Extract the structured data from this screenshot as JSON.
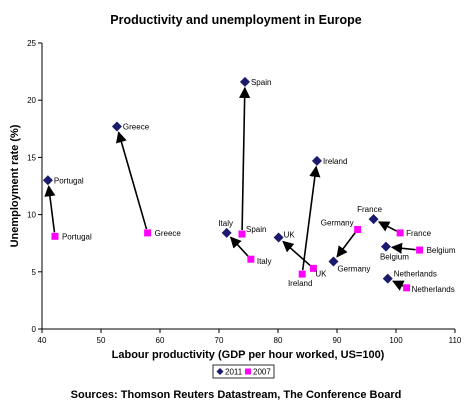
{
  "chart_data": {
    "type": "scatter",
    "title": "Productivity and unemployment in Europe",
    "xlabel": "Labour productivity (GDP per hour worked,  US=100)",
    "ylabel": "Unemployment rate (%)",
    "xlim": [
      40,
      110
    ],
    "ylim": [
      0,
      25
    ],
    "xticks": [
      40,
      50,
      60,
      70,
      80,
      90,
      100,
      110
    ],
    "yticks": [
      0,
      5,
      10,
      15,
      20,
      25
    ],
    "grid": false,
    "legend_position": "bottom",
    "source": "Sources: Thomson Reuters Datastream, The Conference Board",
    "series": [
      {
        "name": "2011",
        "marker": "diamond",
        "color": "#1a1a6e",
        "points": [
          {
            "label": "Portugal",
            "x": 41,
            "y": 13
          },
          {
            "label": "Greece",
            "x": 52.7,
            "y": 17.7
          },
          {
            "label": "Spain",
            "x": 74.4,
            "y": 21.6
          },
          {
            "label": "Italy",
            "x": 71.3,
            "y": 8.4
          },
          {
            "label": "UK",
            "x": 80.1,
            "y": 8.0
          },
          {
            "label": "Ireland",
            "x": 86.6,
            "y": 14.7
          },
          {
            "label": "Germany",
            "x": 89.4,
            "y": 5.9
          },
          {
            "label": "France",
            "x": 96.2,
            "y": 9.6
          },
          {
            "label": "Belgium",
            "x": 98.3,
            "y": 7.2
          },
          {
            "label": "Netherlands",
            "x": 98.6,
            "y": 4.4
          }
        ]
      },
      {
        "name": "2007",
        "marker": "square",
        "color": "#ff00ff",
        "points": [
          {
            "label": "Portugal",
            "x": 42.2,
            "y": 8.1
          },
          {
            "label": "Greece",
            "x": 57.9,
            "y": 8.4
          },
          {
            "label": "Spain",
            "x": 73.9,
            "y": 8.3
          },
          {
            "label": "Italy",
            "x": 75.4,
            "y": 6.1
          },
          {
            "label": "UK",
            "x": 86,
            "y": 5.3
          },
          {
            "label": "Ireland",
            "x": 84.1,
            "y": 4.8
          },
          {
            "label": "Germany",
            "x": 93.5,
            "y": 8.7
          },
          {
            "label": "France",
            "x": 100.7,
            "y": 8.4
          },
          {
            "label": "Belgium",
            "x": 104,
            "y": 6.9
          },
          {
            "label": "Netherlands",
            "x": 101.8,
            "y": 3.6
          }
        ]
      }
    ]
  }
}
